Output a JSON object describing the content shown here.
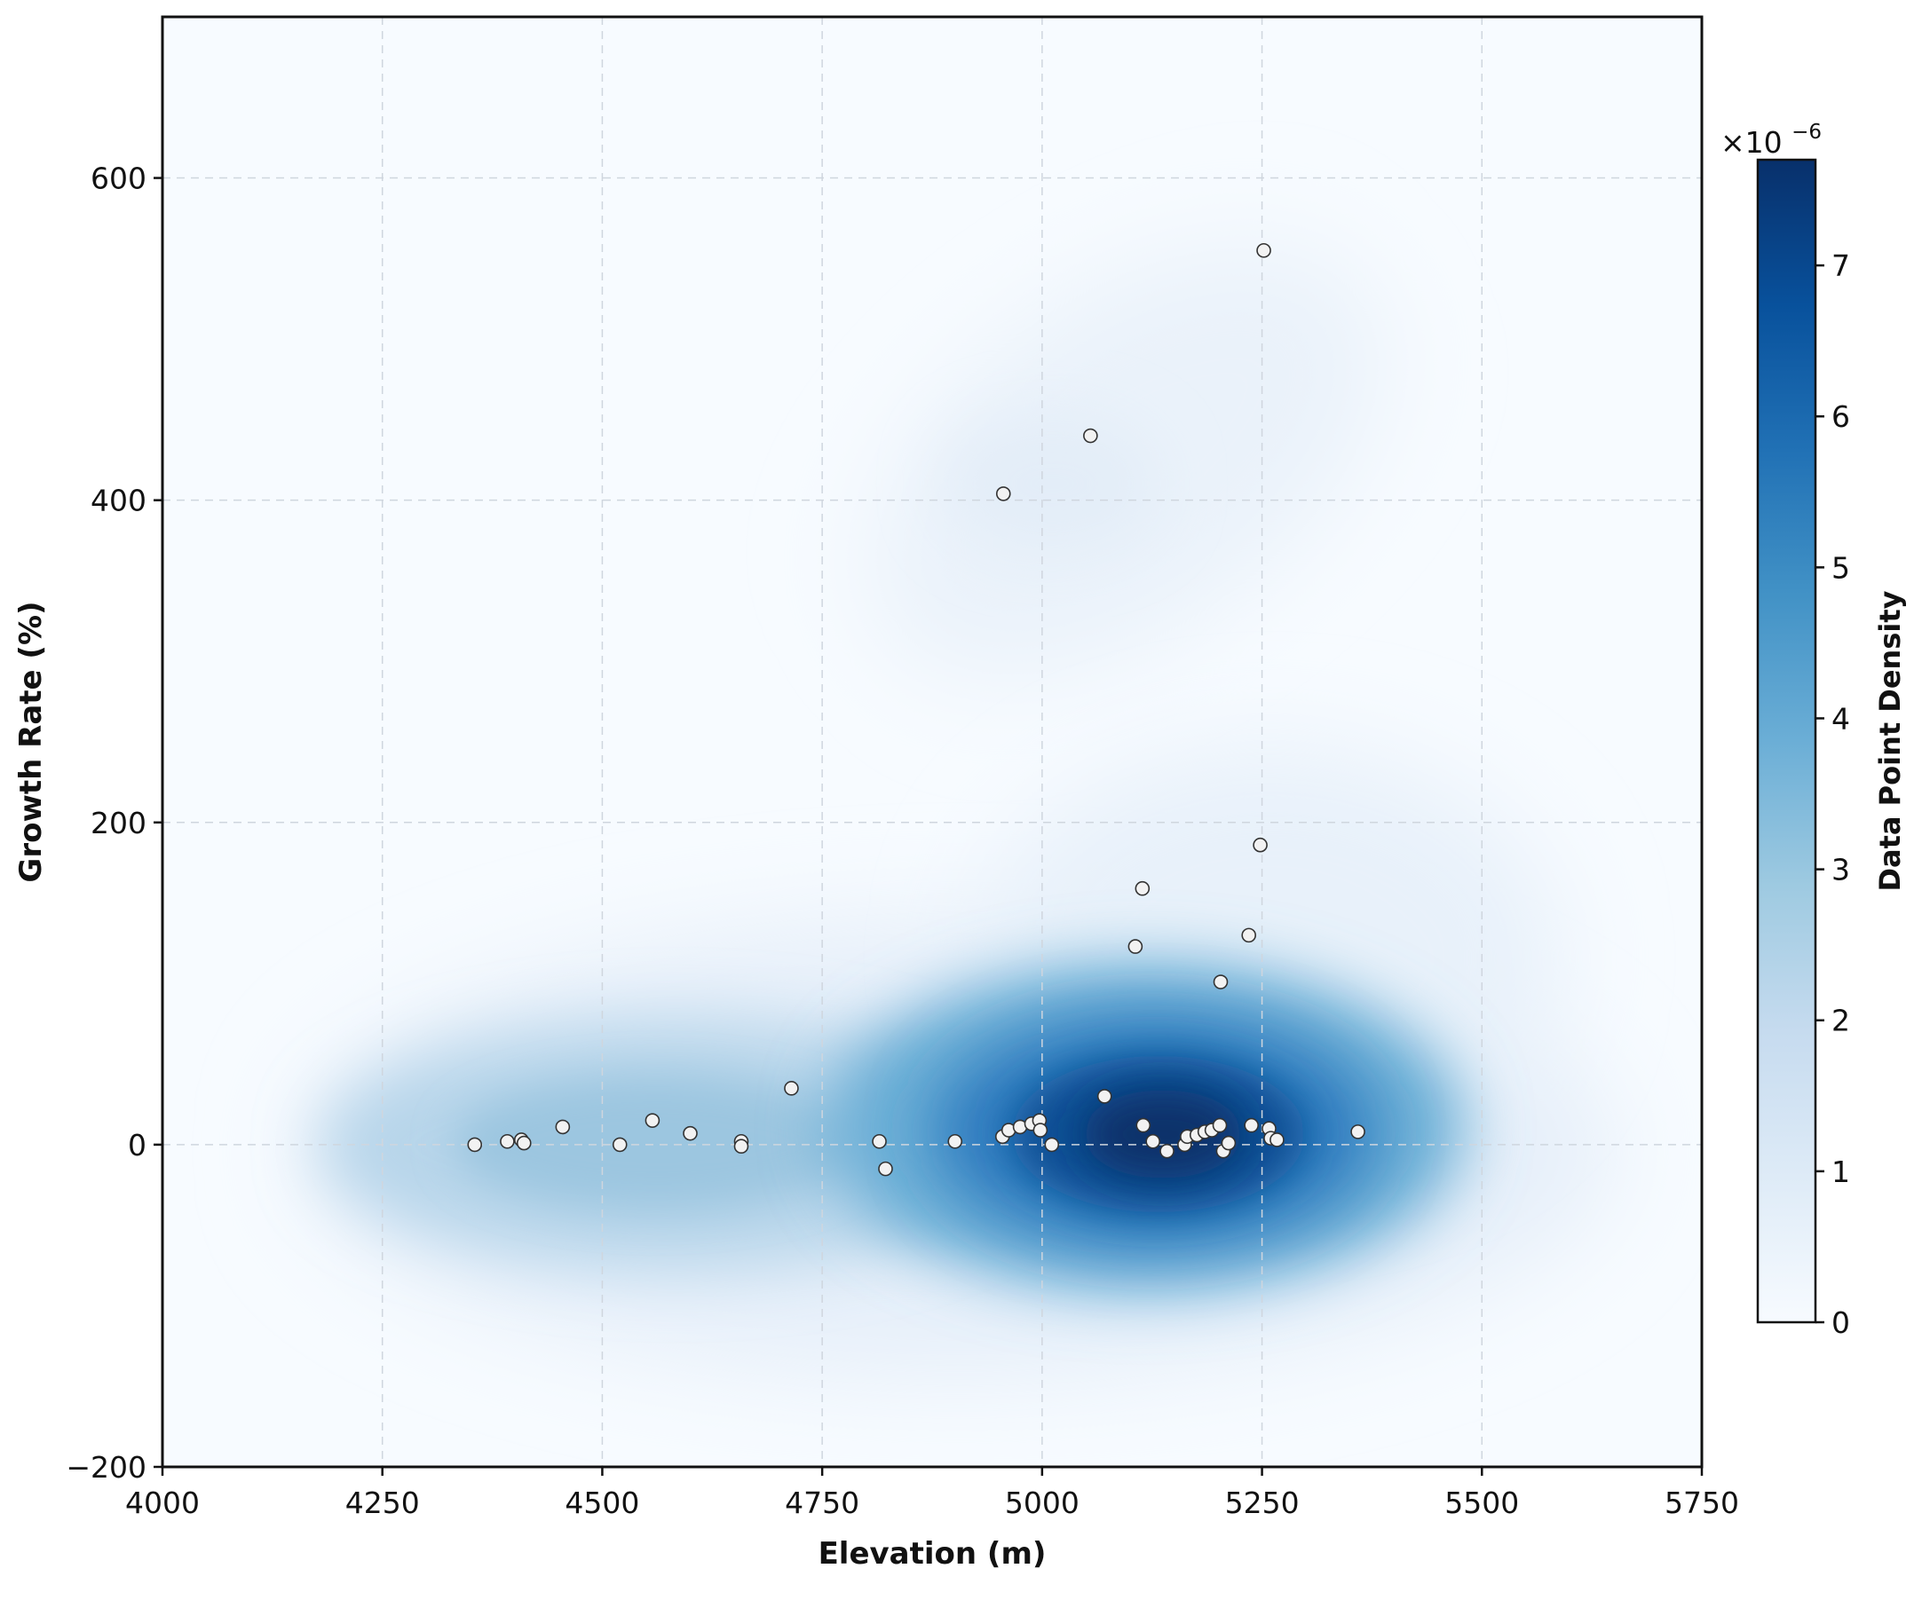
{
  "chart_data": {
    "type": "scatter",
    "subtype": "kde-density-with-scatter",
    "title": "",
    "xlabel": "Elevation (m)",
    "ylabel": "Growth Rate (%)",
    "xlim": [
      4000,
      5750
    ],
    "ylim": [
      -200,
      700
    ],
    "x_ticks": [
      4000,
      4250,
      4500,
      4750,
      5000,
      5250,
      5500,
      5750
    ],
    "y_ticks": [
      -200,
      0,
      200,
      400,
      600
    ],
    "x_tick_labels": [
      "4000",
      "4250",
      "4500",
      "4750",
      "5000",
      "5250",
      "5500",
      "5750"
    ],
    "y_tick_labels": [
      "−200",
      "0",
      "200",
      "400",
      "600"
    ],
    "grid": true,
    "grid_style": "dashed",
    "colormap": "Blues",
    "colors": {
      "low": "#f7fbff",
      "high": "#08306b",
      "marker_fill": "#f2f2f2",
      "marker_edge": "#333333"
    },
    "colorbar": {
      "label": "Data Point Density",
      "scale_text": "×10",
      "scale_exponent": "−6",
      "range": [
        0,
        7.7
      ],
      "ticks": [
        0,
        1,
        2,
        3,
        4,
        5,
        6,
        7
      ],
      "tick_labels": [
        "0",
        "1",
        "2",
        "3",
        "4",
        "5",
        "6",
        "7"
      ]
    },
    "density_peaks": [
      {
        "x": 5140,
        "y": 10,
        "value": 7.7
      },
      {
        "x": 4560,
        "y": 5,
        "value": 3.5
      },
      {
        "x": 5000,
        "y": 420,
        "value": 0.6
      }
    ],
    "points": [
      {
        "x": 4355,
        "y": 0
      },
      {
        "x": 4392,
        "y": 2
      },
      {
        "x": 4408,
        "y": 3
      },
      {
        "x": 4411,
        "y": 1
      },
      {
        "x": 4455,
        "y": 11
      },
      {
        "x": 4520,
        "y": 0
      },
      {
        "x": 4557,
        "y": 15
      },
      {
        "x": 4600,
        "y": 7
      },
      {
        "x": 4658,
        "y": 2
      },
      {
        "x": 4658,
        "y": -1
      },
      {
        "x": 4715,
        "y": 35
      },
      {
        "x": 4815,
        "y": 2
      },
      {
        "x": 4822,
        "y": -15
      },
      {
        "x": 4901,
        "y": 2
      },
      {
        "x": 4955,
        "y": 5
      },
      {
        "x": 4962,
        "y": 9
      },
      {
        "x": 4975,
        "y": 11
      },
      {
        "x": 4988,
        "y": 13
      },
      {
        "x": 4997,
        "y": 15
      },
      {
        "x": 4998,
        "y": 9
      },
      {
        "x": 5011,
        "y": 0
      },
      {
        "x": 4956,
        "y": 404
      },
      {
        "x": 5055,
        "y": 440
      },
      {
        "x": 5071,
        "y": 30
      },
      {
        "x": 5114,
        "y": 159
      },
      {
        "x": 5106,
        "y": 123
      },
      {
        "x": 5115,
        "y": 12
      },
      {
        "x": 5126,
        "y": 2
      },
      {
        "x": 5142,
        "y": -4
      },
      {
        "x": 5162,
        "y": 0
      },
      {
        "x": 5165,
        "y": 5
      },
      {
        "x": 5176,
        "y": 6
      },
      {
        "x": 5185,
        "y": 8
      },
      {
        "x": 5193,
        "y": 9
      },
      {
        "x": 5202,
        "y": 12
      },
      {
        "x": 5203,
        "y": 101
      },
      {
        "x": 5206,
        "y": -4
      },
      {
        "x": 5212,
        "y": 1
      },
      {
        "x": 5235,
        "y": 130
      },
      {
        "x": 5238,
        "y": 12
      },
      {
        "x": 5248,
        "y": 186
      },
      {
        "x": 5252,
        "y": 555
      },
      {
        "x": 5258,
        "y": 10
      },
      {
        "x": 5260,
        "y": 4
      },
      {
        "x": 5267,
        "y": 3
      },
      {
        "x": 5359,
        "y": 8
      }
    ]
  }
}
